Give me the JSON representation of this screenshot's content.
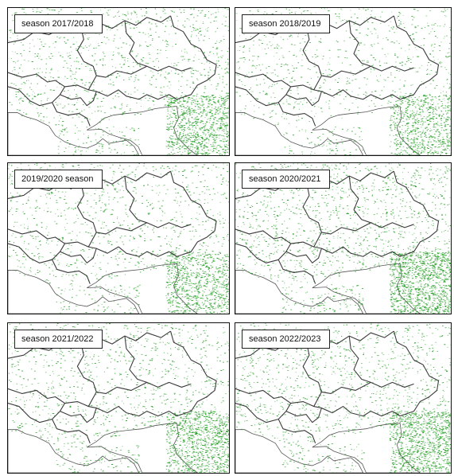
{
  "panels": [
    {
      "label": "season 2017/2018",
      "density": 0.55
    },
    {
      "label": "season 2018/2019",
      "density": 0.45
    },
    {
      "label": "2019/2020 season",
      "density": 0.5
    },
    {
      "label": "season 2020/2021",
      "density": 0.7
    },
    {
      "label": "season 2021/2022",
      "density": 0.55
    },
    {
      "label": "season 2022/2023",
      "density": 0.6
    }
  ],
  "colors": {
    "crop": "#1e9a1e",
    "border": "#3a3a3a",
    "coast": "#555555",
    "sea": "#ffffff"
  }
}
